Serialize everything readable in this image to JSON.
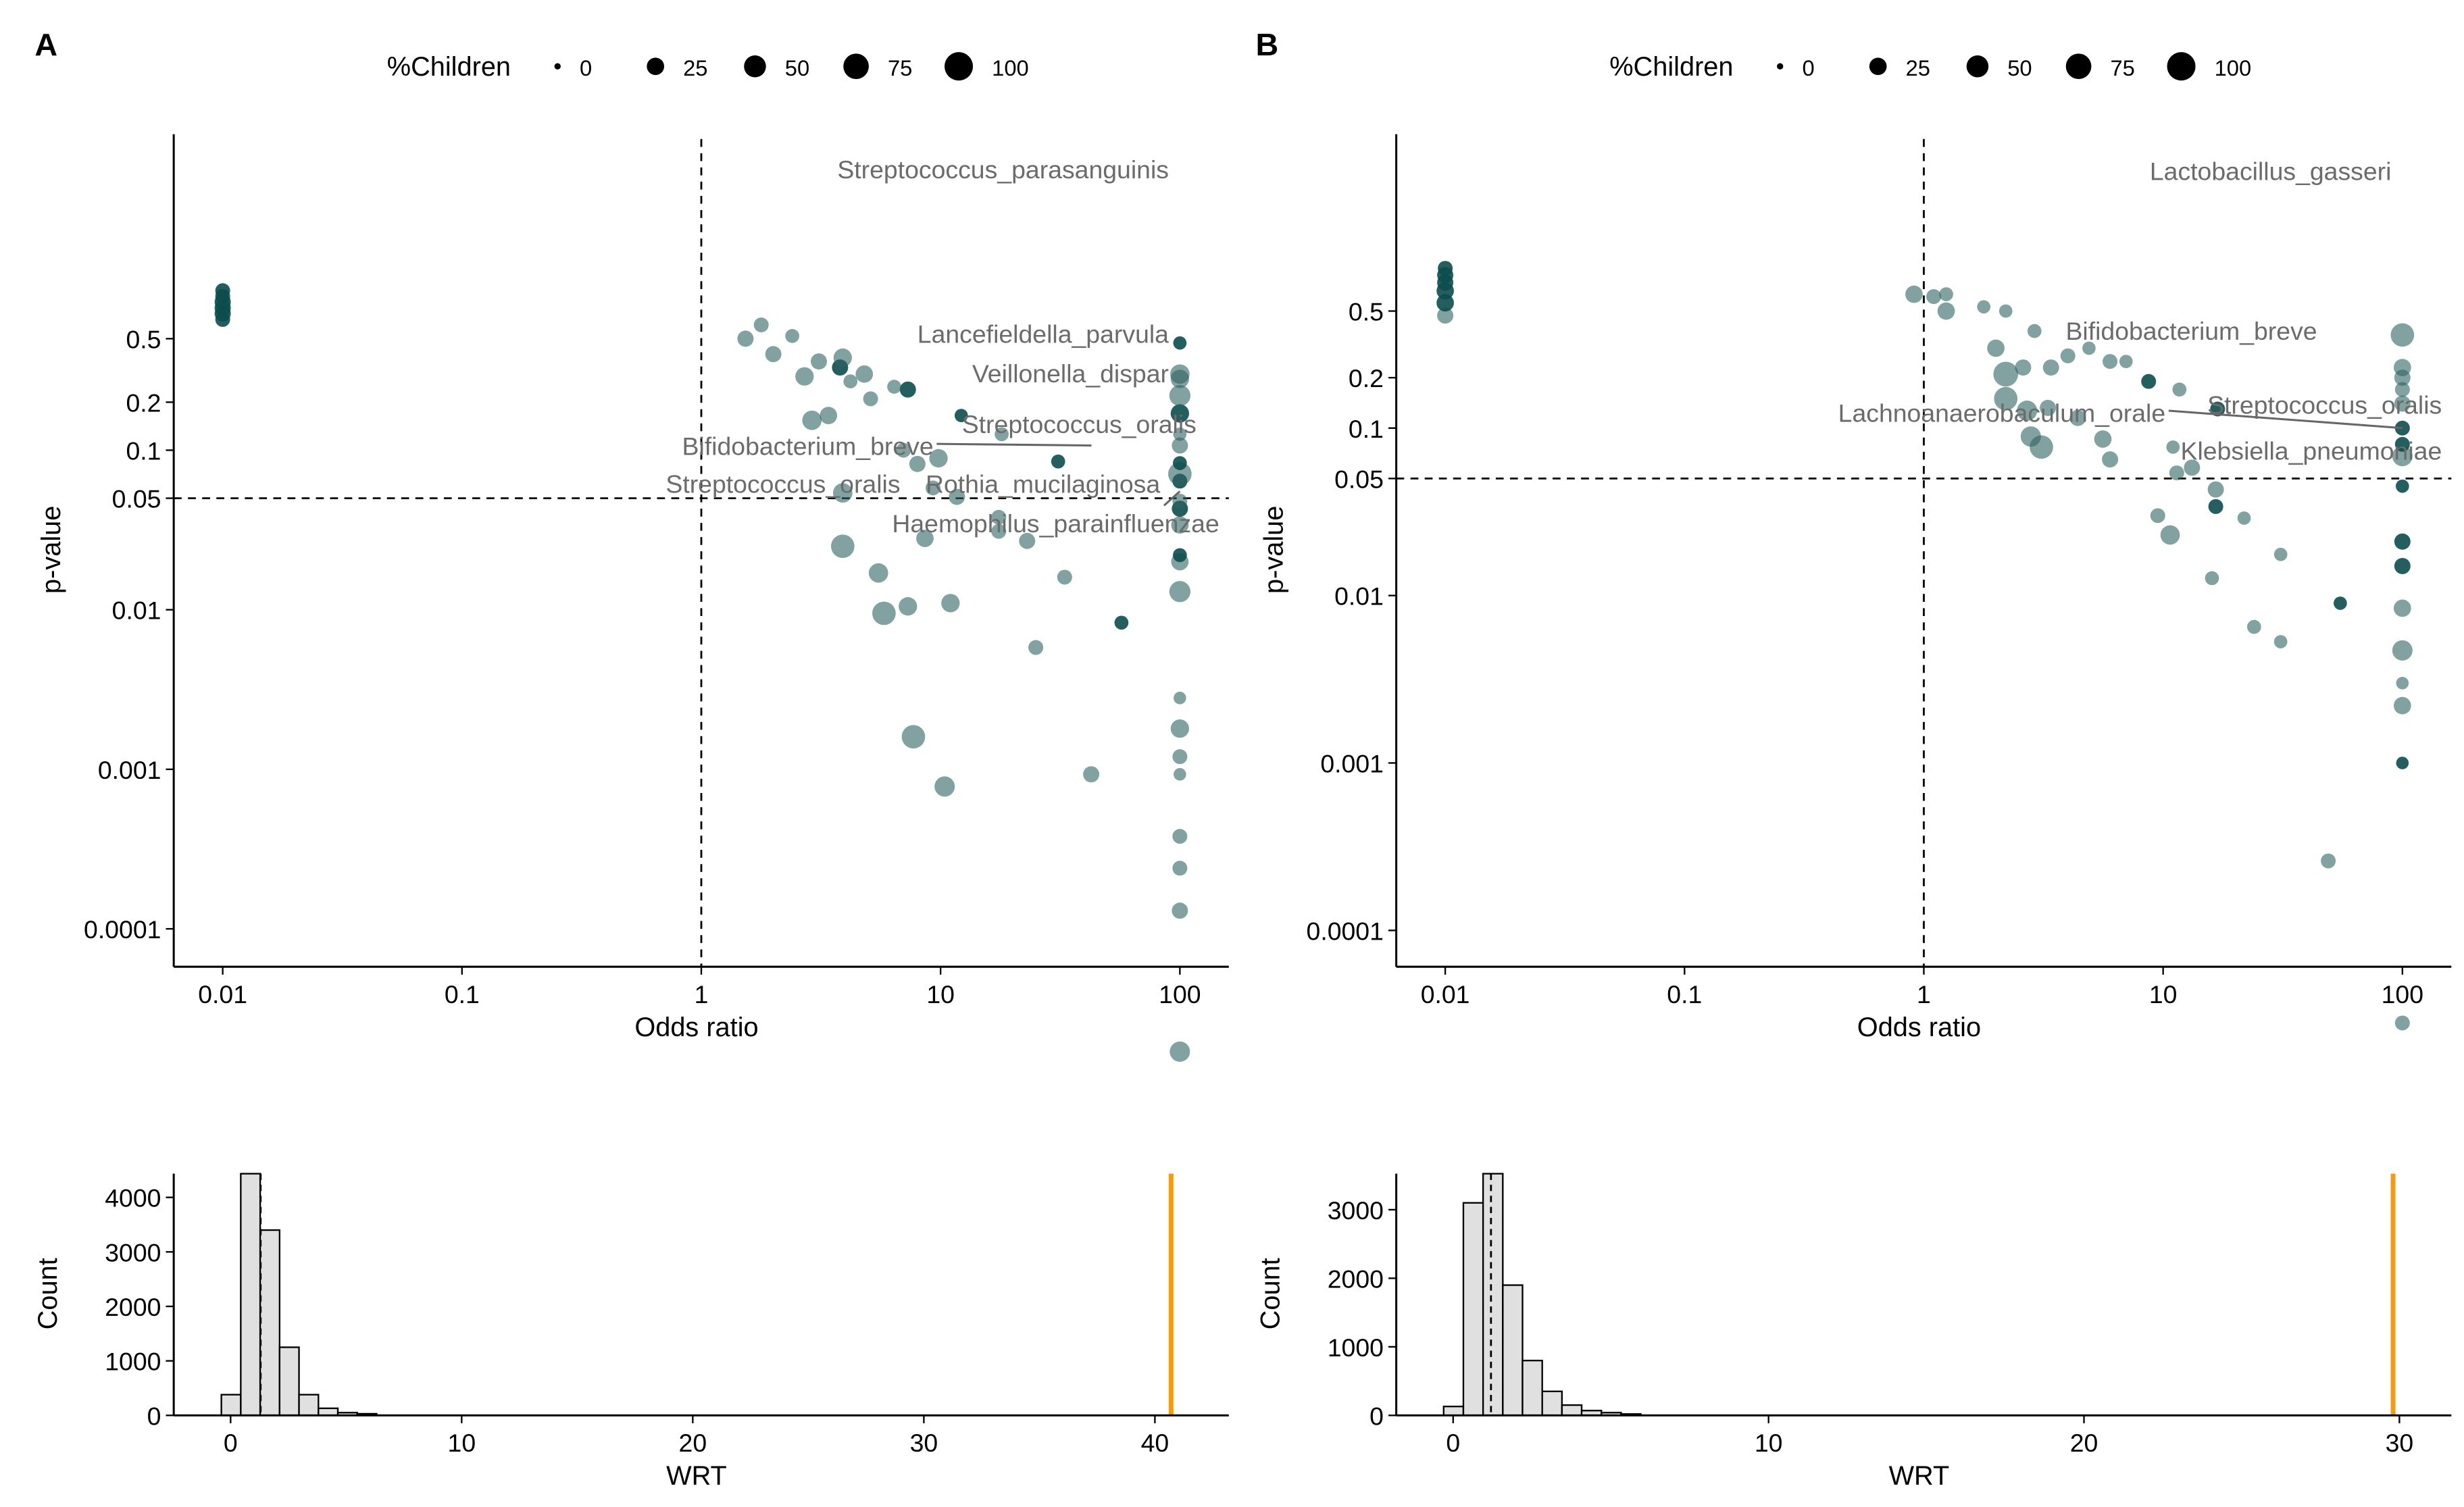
{
  "chart_data": [
    {
      "type": "scatter",
      "panel": "A",
      "xlabel": "Odds ratio",
      "ylabel": "p-value",
      "xscale": "log10",
      "yscale": "-log10",
      "xticks": [
        "0.01",
        "0.1",
        "1",
        "10",
        "100"
      ],
      "xtick_values": [
        0.01,
        0.1,
        1,
        10,
        100
      ],
      "yticks": [
        "0.0001",
        "0.001",
        "0.01",
        "0.05",
        "0.1",
        "0.2",
        "0.5"
      ],
      "ytick_values": [
        0.0001,
        0.001,
        0.01,
        0.05,
        0.1,
        0.2,
        0.5
      ],
      "reference_lines": {
        "x": 1,
        "y": 0.05
      },
      "legend": {
        "title": "%Children",
        "sizes": [
          "0",
          "25",
          "50",
          "75",
          "100"
        ],
        "size_values": [
          0,
          25,
          50,
          75,
          100
        ],
        "placement": "top"
      },
      "labels": [
        "Streptococcus_parasanguinis",
        "Lancefieldella_parvula",
        "Veillonella_dispar",
        "Streptococcus_oralis",
        "Bifidobacterium_breve",
        "Streptococcus_oralis",
        "Rothia_mucilaginosa",
        "Haemophilus_parainfluenzae"
      ],
      "points_columns": [
        "odds_ratio",
        "p_value",
        "pct_children",
        "dark"
      ],
      "points": [
        [
          100,
          1.7e-05,
          40,
          0
        ],
        [
          100,
          0.00013,
          20,
          0
        ],
        [
          100,
          0.00024,
          15,
          0
        ],
        [
          100,
          0.00038,
          15,
          0
        ],
        [
          10.4,
          0.00078,
          40,
          0
        ],
        [
          42.6,
          0.00093,
          20,
          0
        ],
        [
          100,
          0.00093,
          8,
          0
        ],
        [
          100,
          0.0012,
          15,
          0
        ],
        [
          7.7,
          0.0016,
          60,
          0
        ],
        [
          100,
          0.0018,
          30,
          0
        ],
        [
          100,
          0.0028,
          8,
          0
        ],
        [
          25,
          0.0058,
          15,
          0
        ],
        [
          57,
          0.0083,
          12,
          1
        ],
        [
          5.8,
          0.0095,
          60,
          0
        ],
        [
          7.3,
          0.0105,
          30,
          0
        ],
        [
          11,
          0.011,
          30,
          0
        ],
        [
          100,
          0.013,
          45,
          0
        ],
        [
          33,
          0.016,
          15,
          0
        ],
        [
          5.5,
          0.017,
          35,
          0
        ],
        [
          100,
          0.02,
          25,
          0
        ],
        [
          100,
          0.022,
          12,
          1
        ],
        [
          3.9,
          0.025,
          60,
          0
        ],
        [
          8.6,
          0.028,
          25,
          0
        ],
        [
          23,
          0.027,
          20,
          0
        ],
        [
          17.5,
          0.031,
          15,
          0
        ],
        [
          17.5,
          0.038,
          15,
          0
        ],
        [
          100,
          0.034,
          25,
          0
        ],
        [
          100,
          0.043,
          20,
          1
        ],
        [
          100,
          0.048,
          15,
          0
        ],
        [
          3.9,
          0.054,
          35,
          0
        ],
        [
          11.7,
          0.051,
          20,
          0
        ],
        [
          9.3,
          0.058,
          15,
          0
        ],
        [
          100,
          0.064,
          15,
          1
        ],
        [
          100,
          0.071,
          60,
          0
        ],
        [
          100,
          0.083,
          12,
          1
        ],
        [
          31,
          0.085,
          12,
          1
        ],
        [
          8,
          0.082,
          20,
          0
        ],
        [
          9.8,
          0.089,
          30,
          0
        ],
        [
          7,
          0.1,
          15,
          0
        ],
        [
          100,
          0.107,
          20,
          0
        ],
        [
          100,
          0.126,
          10,
          0
        ],
        [
          18,
          0.126,
          12,
          0
        ],
        [
          12.2,
          0.165,
          10,
          1
        ],
        [
          100,
          0.17,
          30,
          1
        ],
        [
          100,
          0.22,
          45,
          0
        ],
        [
          2.9,
          0.154,
          35,
          0
        ],
        [
          3.4,
          0.165,
          25,
          0
        ],
        [
          5.1,
          0.21,
          15,
          0
        ],
        [
          7.3,
          0.24,
          20,
          1
        ],
        [
          6.4,
          0.25,
          12,
          0
        ],
        [
          2.7,
          0.29,
          30,
          0
        ],
        [
          4.2,
          0.27,
          12,
          0
        ],
        [
          4.8,
          0.3,
          25,
          0
        ],
        [
          3.8,
          0.33,
          20,
          1
        ],
        [
          3.1,
          0.36,
          20,
          0
        ],
        [
          3.9,
          0.38,
          30,
          0
        ],
        [
          2.0,
          0.4,
          20,
          0
        ],
        [
          1.53,
          0.5,
          20,
          0
        ],
        [
          2.4,
          0.52,
          12,
          0
        ],
        [
          1.78,
          0.61,
          15,
          0
        ],
        [
          100,
          0.3,
          35,
          0
        ],
        [
          100,
          0.28,
          30,
          0
        ],
        [
          100,
          0.47,
          10,
          1
        ],
        [
          0.01,
          0.66,
          15,
          1
        ],
        [
          0.01,
          0.72,
          20,
          1
        ],
        [
          0.01,
          0.78,
          20,
          1
        ],
        [
          0.01,
          0.85,
          20,
          1
        ],
        [
          0.01,
          0.92,
          15,
          1
        ],
        [
          0.01,
          1.0,
          15,
          1
        ]
      ]
    },
    {
      "type": "scatter",
      "panel": "B",
      "xlabel": "Odds ratio",
      "ylabel": "p-value",
      "xscale": "log10",
      "yscale": "-log10",
      "xticks": [
        "0.01",
        "0.1",
        "1",
        "10",
        "100"
      ],
      "xtick_values": [
        0.01,
        0.1,
        1,
        10,
        100
      ],
      "yticks": [
        "0.0001",
        "0.001",
        "0.01",
        "0.05",
        "0.1",
        "0.2",
        "0.5"
      ],
      "ytick_values": [
        0.0001,
        0.001,
        0.01,
        0.05,
        0.1,
        0.2,
        0.5
      ],
      "reference_lines": {
        "x": 1,
        "y": 0.05
      },
      "legend": {
        "title": "%Children",
        "sizes": [
          "0",
          "25",
          "50",
          "75",
          "100"
        ],
        "size_values": [
          0,
          25,
          50,
          75,
          100
        ],
        "placement": "top"
      },
      "labels": [
        "Lactobacillus_gasseri",
        "Bifidobacterium_breve",
        "Lachnoanaerobaculum_orale",
        "Streptococcus_oralis",
        "Klebsiella_pneumoniae"
      ],
      "points_columns": [
        "odds_ratio",
        "p_value",
        "pct_children",
        "dark"
      ],
      "points": [
        [
          100,
          2.8e-05,
          15,
          0
        ],
        [
          49,
          0.00026,
          15,
          0
        ],
        [
          100,
          0.001,
          8,
          1
        ],
        [
          100,
          0.0022,
          25,
          0
        ],
        [
          100,
          0.003,
          8,
          0
        ],
        [
          31,
          0.0053,
          10,
          0
        ],
        [
          100,
          0.0047,
          40,
          0
        ],
        [
          24,
          0.0065,
          12,
          0
        ],
        [
          55,
          0.009,
          10,
          1
        ],
        [
          100,
          0.0084,
          25,
          0
        ],
        [
          16,
          0.0127,
          12,
          0
        ],
        [
          100,
          0.015,
          20,
          1
        ],
        [
          31,
          0.0176,
          10,
          0
        ],
        [
          10.7,
          0.023,
          35,
          0
        ],
        [
          100,
          0.021,
          20,
          1
        ],
        [
          9.5,
          0.03,
          15,
          0
        ],
        [
          16.6,
          0.034,
          15,
          1
        ],
        [
          21.8,
          0.029,
          10,
          0
        ],
        [
          16.6,
          0.043,
          20,
          0
        ],
        [
          100,
          0.045,
          10,
          1
        ],
        [
          11.4,
          0.054,
          15,
          0
        ],
        [
          13.2,
          0.058,
          20,
          0
        ],
        [
          6,
          0.065,
          20,
          0
        ],
        [
          100,
          0.068,
          40,
          0
        ],
        [
          11,
          0.077,
          10,
          0
        ],
        [
          3.1,
          0.077,
          60,
          0
        ],
        [
          2.8,
          0.089,
          40,
          0
        ],
        [
          5.6,
          0.086,
          25,
          0
        ],
        [
          100,
          0.08,
          15,
          1
        ],
        [
          100,
          0.1,
          15,
          1
        ],
        [
          4.4,
          0.115,
          20,
          0
        ],
        [
          2.7,
          0.127,
          40,
          0
        ],
        [
          3.3,
          0.132,
          20,
          0
        ],
        [
          2.2,
          0.15,
          60,
          0
        ],
        [
          16.9,
          0.13,
          15,
          1
        ],
        [
          100,
          0.14,
          20,
          0
        ],
        [
          100,
          0.17,
          15,
          0
        ],
        [
          8.7,
          0.19,
          15,
          1
        ],
        [
          11.7,
          0.17,
          12,
          0
        ],
        [
          2.2,
          0.21,
          70,
          0
        ],
        [
          3.4,
          0.23,
          20,
          0
        ],
        [
          100,
          0.23,
          25,
          0
        ],
        [
          100,
          0.2,
          20,
          0
        ],
        [
          6,
          0.25,
          15,
          0
        ],
        [
          7,
          0.25,
          10,
          0
        ],
        [
          2.0,
          0.3,
          25,
          0
        ],
        [
          2.6,
          0.23,
          20,
          0
        ],
        [
          4.0,
          0.27,
          15,
          0
        ],
        [
          4.9,
          0.3,
          10,
          0
        ],
        [
          2.9,
          0.38,
          12,
          0
        ],
        [
          100,
          0.36,
          60,
          0
        ],
        [
          1.24,
          0.5,
          25,
          0
        ],
        [
          1.78,
          0.53,
          10,
          0
        ],
        [
          2.2,
          0.5,
          10,
          0
        ],
        [
          0.91,
          0.63,
          25,
          0
        ],
        [
          1.1,
          0.61,
          15,
          0
        ],
        [
          1.24,
          0.63,
          12,
          0
        ],
        [
          0.01,
          0.47,
          20,
          0
        ],
        [
          0.01,
          0.56,
          25,
          1
        ],
        [
          0.01,
          0.66,
          25,
          1
        ],
        [
          0.01,
          0.74,
          20,
          1
        ],
        [
          0.01,
          0.82,
          20,
          1
        ],
        [
          0.01,
          0.9,
          15,
          1
        ]
      ]
    },
    {
      "type": "bar",
      "subtype": "histogram",
      "panel": "A-hist",
      "xlabel": "WRT",
      "ylabel": "Count",
      "xticks": [
        "0",
        "10",
        "20",
        "30",
        "40"
      ],
      "xtick_values": [
        0,
        10,
        20,
        30,
        40
      ],
      "yticks": [
        "0",
        "1000",
        "2000",
        "3000",
        "4000"
      ],
      "ytick_values": [
        0,
        1000,
        2000,
        3000,
        4000
      ],
      "ylim": [
        0,
        4500
      ],
      "bin_width": 0.84,
      "bin_starts": [
        -0.4,
        0.44,
        1.28,
        2.12,
        2.96,
        3.8,
        4.64,
        5.48
      ],
      "counts": [
        380,
        4600,
        3400,
        1250,
        380,
        130,
        50,
        30
      ],
      "mean_line": 1.3,
      "observed_value": 40.7,
      "observed_color": "#f39c12"
    },
    {
      "type": "bar",
      "subtype": "histogram",
      "panel": "B-hist",
      "xlabel": "WRT",
      "ylabel": "Count",
      "xticks": [
        "0",
        "10",
        "20",
        "30"
      ],
      "xtick_values": [
        0,
        10,
        20,
        30
      ],
      "yticks": [
        "0",
        "1000",
        "2000",
        "3000"
      ],
      "ytick_values": [
        0,
        1000,
        2000,
        3000
      ],
      "ylim": [
        0,
        3500
      ],
      "bin_width": 0.625,
      "bin_starts": [
        -0.3,
        0.325,
        0.95,
        1.575,
        2.2,
        2.825,
        3.45,
        4.075,
        4.7,
        5.325
      ],
      "counts": [
        130,
        3100,
        3700,
        1900,
        800,
        350,
        150,
        70,
        40,
        20
      ],
      "mean_line": 1.2,
      "observed_value": 29.8,
      "observed_color": "#f39c12"
    }
  ],
  "panel_labels": [
    "A",
    "B"
  ],
  "colors": {
    "point": "#2e6262",
    "point_dark": "#0d4d4d",
    "label": "#6b6b6b",
    "hist_fill": "#e0e0e0",
    "observed": "#f39c12"
  }
}
